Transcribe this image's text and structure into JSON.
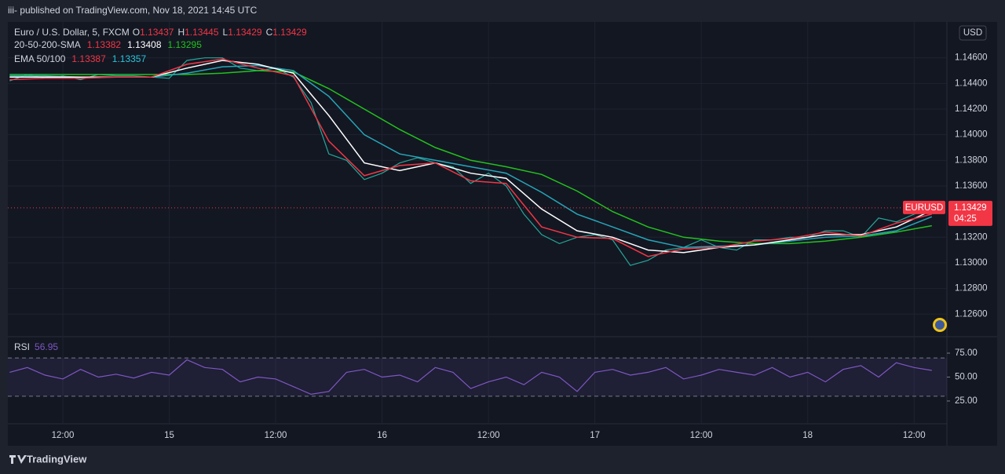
{
  "header": "iii- published on TradingView.com, Nov 18, 2021 14:45 UTC",
  "footer": "TradingView",
  "chart_data": {
    "type": "line",
    "currency": "USD",
    "legend": {
      "symbol": "Euro / U.S. Dollar, 5, FXCM",
      "ohlc": [
        {
          "label": "O",
          "value": 1.13437
        },
        {
          "label": "H",
          "value": 1.13445
        },
        {
          "label": "L",
          "value": 1.13429
        },
        {
          "label": "C",
          "value": 1.13429
        }
      ],
      "sma": {
        "label": "20-50-200-SMA",
        "values": [
          1.13382,
          1.13408,
          1.13295
        ],
        "colors": [
          "#f23645",
          "#ffffff",
          "#22c21d"
        ]
      },
      "ema": {
        "label": "EMA 50/100",
        "values": [
          1.13387,
          1.13357
        ],
        "colors": [
          "#f23645",
          "#26c6da"
        ]
      }
    },
    "xlim": [
      5.8,
      111.7
    ],
    "xticks": [
      {
        "value": 12,
        "label": "12:00"
      },
      {
        "value": 24,
        "label": "15"
      },
      {
        "value": 36,
        "label": "12:00"
      },
      {
        "value": 48,
        "label": "16"
      },
      {
        "value": 60,
        "label": "12:00"
      },
      {
        "value": 72,
        "label": "17"
      },
      {
        "value": 84,
        "label": "12:00"
      },
      {
        "value": 96,
        "label": "18"
      },
      {
        "value": 108,
        "label": "12:00"
      }
    ],
    "ylim": [
      1.1243,
      1.1488
    ],
    "yticks": [
      {
        "value": 1.126,
        "label": "1.12600"
      },
      {
        "value": 1.128,
        "label": "1.12800"
      },
      {
        "value": 1.13,
        "label": "1.13000"
      },
      {
        "value": 1.132,
        "label": "1.13200"
      },
      {
        "value": 1.136,
        "label": "1.13600"
      },
      {
        "value": 1.138,
        "label": "1.13800"
      },
      {
        "value": 1.14,
        "label": "1.14000"
      },
      {
        "value": 1.142,
        "label": "1.14200"
      },
      {
        "value": 1.144,
        "label": "1.14400"
      },
      {
        "value": 1.146,
        "label": "1.14600"
      }
    ],
    "grid": true,
    "last_price": {
      "symbol": "EURUSD",
      "value": 1.13429,
      "countdown": "04:25",
      "color": "#f23645"
    },
    "series": [
      {
        "name": "EURUSD",
        "color": "#26a69a",
        "x": [
          6,
          8,
          10,
          12,
          14,
          16,
          18,
          20,
          22,
          24,
          26,
          28,
          30,
          32,
          34,
          36,
          38,
          40,
          42,
          44,
          46,
          48,
          50,
          52,
          54,
          56,
          58,
          60,
          62,
          64,
          66,
          68,
          70,
          72,
          74,
          76,
          78,
          80,
          82,
          84,
          86,
          88,
          90,
          92,
          94,
          96,
          98,
          100,
          102,
          104,
          106,
          108,
          110
        ],
        "values": [
          1.1442,
          1.1447,
          1.1444,
          1.1446,
          1.1443,
          1.1447,
          1.1446,
          1.1446,
          1.1445,
          1.1444,
          1.1458,
          1.146,
          1.146,
          1.1452,
          1.145,
          1.1452,
          1.1445,
          1.1425,
          1.1385,
          1.138,
          1.1365,
          1.137,
          1.1378,
          1.1382,
          1.1378,
          1.1375,
          1.1362,
          1.137,
          1.136,
          1.1338,
          1.1322,
          1.1315,
          1.132,
          1.1322,
          1.1318,
          1.1298,
          1.1302,
          1.131,
          1.1312,
          1.1318,
          1.1312,
          1.131,
          1.1318,
          1.1318,
          1.132,
          1.132,
          1.1325,
          1.1325,
          1.132,
          1.1335,
          1.1332,
          1.1338,
          1.1343
        ]
      },
      {
        "color": "#22c21d",
        "x": [
          6,
          10,
          14,
          18,
          22,
          26,
          30,
          34,
          38,
          42,
          46,
          50,
          54,
          58,
          62,
          66,
          70,
          74,
          78,
          82,
          86,
          90,
          94,
          98,
          102,
          106,
          110
        ],
        "values": [
          1.1447,
          1.1447,
          1.1447,
          1.1447,
          1.1447,
          1.1447,
          1.1448,
          1.145,
          1.1449,
          1.1436,
          1.142,
          1.1404,
          1.139,
          1.138,
          1.1375,
          1.1369,
          1.1356,
          1.134,
          1.1328,
          1.132,
          1.1317,
          1.1315,
          1.1315,
          1.1317,
          1.132,
          1.1324,
          1.1329
        ]
      },
      {
        "color": "#26a6b8",
        "x": [
          6,
          10,
          14,
          18,
          22,
          26,
          30,
          34,
          38,
          42,
          46,
          50,
          54,
          58,
          62,
          66,
          70,
          74,
          78,
          82,
          86,
          90,
          94,
          98,
          102,
          106,
          110
        ],
        "values": [
          1.1446,
          1.1446,
          1.1445,
          1.1445,
          1.1445,
          1.1448,
          1.1453,
          1.1454,
          1.145,
          1.143,
          1.14,
          1.1385,
          1.138,
          1.1375,
          1.137,
          1.1355,
          1.1338,
          1.1328,
          1.1318,
          1.1312,
          1.1313,
          1.1314,
          1.1317,
          1.132,
          1.1321,
          1.1325,
          1.1336
        ]
      },
      {
        "color": "#ffffff",
        "x": [
          6,
          10,
          14,
          18,
          22,
          26,
          30,
          34,
          38,
          42,
          46,
          50,
          54,
          58,
          62,
          66,
          70,
          74,
          78,
          82,
          86,
          90,
          94,
          98,
          102,
          106,
          110
        ],
        "values": [
          1.1445,
          1.1445,
          1.1445,
          1.1445,
          1.1445,
          1.1452,
          1.1458,
          1.1455,
          1.1448,
          1.1415,
          1.1378,
          1.1372,
          1.1378,
          1.137,
          1.1366,
          1.1342,
          1.1325,
          1.132,
          1.131,
          1.1308,
          1.1312,
          1.1314,
          1.1318,
          1.1322,
          1.1322,
          1.1328,
          1.1341
        ]
      },
      {
        "color": "#f23645",
        "x": [
          6,
          10,
          14,
          18,
          22,
          26,
          30,
          34,
          38,
          42,
          46,
          50,
          54,
          58,
          62,
          66,
          70,
          74,
          78,
          82,
          86,
          90,
          94,
          98,
          102,
          106,
          110
        ],
        "values": [
          1.1443,
          1.1444,
          1.1444,
          1.1445,
          1.1445,
          1.1455,
          1.1459,
          1.1452,
          1.1446,
          1.1395,
          1.1368,
          1.1376,
          1.1378,
          1.1364,
          1.1362,
          1.1328,
          1.132,
          1.1319,
          1.1305,
          1.1311,
          1.1312,
          1.1317,
          1.1319,
          1.1324,
          1.1321,
          1.1331,
          1.1338
        ]
      }
    ],
    "rsi": {
      "label": "RSI",
      "last": 56.95,
      "color": "#7e57c2",
      "ylim": [
        1.2,
        91.4
      ],
      "yticks": [
        {
          "value": 25,
          "label": "25.00"
        },
        {
          "value": 50,
          "label": "50.00"
        },
        {
          "value": 75,
          "label": "75.00"
        }
      ],
      "bands": [
        30,
        70
      ],
      "x": [
        6,
        8,
        10,
        12,
        14,
        16,
        18,
        20,
        22,
        24,
        26,
        28,
        30,
        32,
        34,
        36,
        38,
        40,
        42,
        44,
        46,
        48,
        50,
        52,
        54,
        56,
        58,
        60,
        62,
        64,
        66,
        68,
        70,
        72,
        74,
        76,
        78,
        80,
        82,
        84,
        86,
        88,
        90,
        92,
        94,
        96,
        98,
        100,
        102,
        104,
        106,
        108,
        110
      ],
      "values": [
        55,
        60,
        52,
        48,
        58,
        50,
        53,
        49,
        55,
        52,
        68,
        60,
        58,
        45,
        50,
        48,
        40,
        32,
        35,
        55,
        58,
        50,
        52,
        45,
        60,
        55,
        38,
        45,
        50,
        42,
        55,
        50,
        35,
        55,
        58,
        52,
        55,
        60,
        48,
        52,
        58,
        55,
        52,
        60,
        50,
        55,
        45,
        58,
        62,
        50,
        65,
        60,
        57
      ]
    }
  }
}
